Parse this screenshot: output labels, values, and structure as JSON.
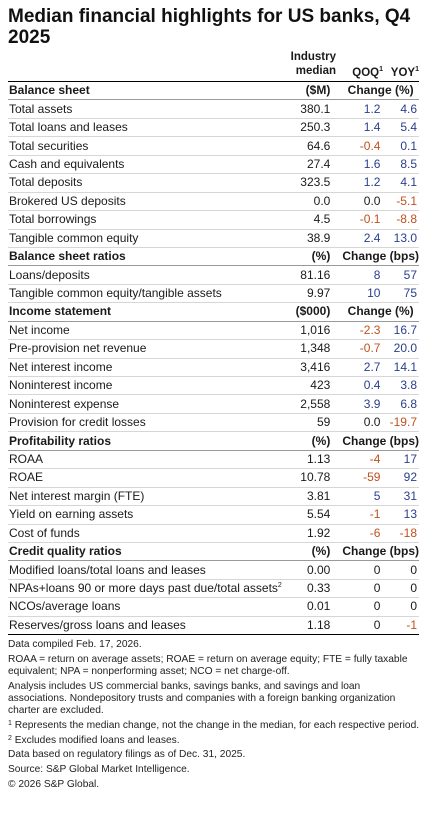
{
  "title": "Median financial highlights for US banks, Q4 2025",
  "columns": {
    "median_line1": "Industry",
    "median_line2": "median",
    "qoq": "QOQ",
    "yoy": "YOY",
    "footnote_mark": "1"
  },
  "sections": [
    {
      "name": "Balance sheet",
      "unit": "($M)",
      "change_unit": "Change (%)",
      "rows": [
        {
          "label": "Total assets",
          "median": "380.1",
          "qoq": "1.2",
          "yoy": "4.6"
        },
        {
          "label": "Total loans and leases",
          "median": "250.3",
          "qoq": "1.4",
          "yoy": "5.4"
        },
        {
          "label": "Total securities",
          "median": "64.6",
          "qoq": "-0.4",
          "yoy": "0.1"
        },
        {
          "label": "Cash and equivalents",
          "median": "27.4",
          "qoq": "1.6",
          "yoy": "8.5"
        },
        {
          "label": "Total deposits",
          "median": "323.5",
          "qoq": "1.2",
          "yoy": "4.1"
        },
        {
          "label": "Brokered US deposits",
          "median": "0.0",
          "qoq": "0.0",
          "yoy": "-5.1"
        },
        {
          "label": "Total borrowings",
          "median": "4.5",
          "qoq": "-0.1",
          "yoy": "-8.8"
        },
        {
          "label": "Tangible common equity",
          "median": "38.9",
          "qoq": "2.4",
          "yoy": "13.0"
        }
      ]
    },
    {
      "name": "Balance sheet ratios",
      "unit": "(%)",
      "change_unit": "Change (bps)",
      "rows": [
        {
          "label": "Loans/deposits",
          "median": "81.16",
          "qoq": "8",
          "yoy": "57"
        },
        {
          "label": "Tangible common equity/tangible assets",
          "median": "9.97",
          "qoq": "10",
          "yoy": "75"
        }
      ]
    },
    {
      "name": "Income statement",
      "unit": "($000)",
      "change_unit": "Change (%)",
      "rows": [
        {
          "label": "Net income",
          "median": "1,016",
          "qoq": "-2.3",
          "yoy": "16.7"
        },
        {
          "label": "Pre-provision net revenue",
          "median": "1,348",
          "qoq": "-0.7",
          "yoy": "20.0"
        },
        {
          "label": "Net interest income",
          "median": "3,416",
          "qoq": "2.7",
          "yoy": "14.1"
        },
        {
          "label": "Noninterest income",
          "median": "423",
          "qoq": "0.4",
          "yoy": "3.8"
        },
        {
          "label": "Noninterest expense",
          "median": "2,558",
          "qoq": "3.9",
          "yoy": "6.8"
        },
        {
          "label": "Provision for credit losses",
          "median": "59",
          "qoq": "0.0",
          "yoy": "-19.7"
        }
      ]
    },
    {
      "name": "Profitability ratios",
      "unit": "(%)",
      "change_unit": "Change (bps)",
      "rows": [
        {
          "label": "ROAA",
          "median": "1.13",
          "qoq": "-4",
          "yoy": "17"
        },
        {
          "label": "ROAE",
          "median": "10.78",
          "qoq": "-59",
          "yoy": "92"
        },
        {
          "label": "Net interest margin (FTE)",
          "median": "3.81",
          "qoq": "5",
          "yoy": "31"
        },
        {
          "label": "Yield on earning assets",
          "median": "5.54",
          "qoq": "-1",
          "yoy": "13"
        },
        {
          "label": "Cost of funds",
          "median": "1.92",
          "qoq": "-6",
          "yoy": "-18"
        }
      ]
    },
    {
      "name": "Credit quality ratios",
      "unit": "(%)",
      "change_unit": "Change (bps)",
      "rows": [
        {
          "label": "Modified loans/total loans and leases",
          "median": "0.00",
          "qoq": "0",
          "yoy": "0"
        },
        {
          "label": "NPAs+loans 90 or more days past due/total assets",
          "label_sup": "2",
          "median": "0.33",
          "qoq": "0",
          "yoy": "0"
        },
        {
          "label": "NCOs/average loans",
          "median": "0.01",
          "qoq": "0",
          "yoy": "0"
        },
        {
          "label": "Reserves/gross loans and leases",
          "median": "1.18",
          "qoq": "0",
          "yoy": "-1"
        }
      ]
    }
  ],
  "notes": {
    "compiled": "Data compiled Feb. 17, 2026.",
    "definitions": "ROAA = return on average assets; ROAE = return on average equity; FTE = fully taxable equivalent; NPA = nonperforming asset; NCO = net charge-off.",
    "scope": "Analysis includes US commercial banks, savings banks, and savings and loan associations. Nondepository trusts and companies with a foreign banking organization charter are excluded.",
    "fn1_mark": "1",
    "fn1": " Represents the median change, not the change in the median, for each respective period.",
    "fn2_mark": "2",
    "fn2": " Excludes modified loans and leases.",
    "basis": "Data based on regulatory filings as of Dec. 31, 2025.",
    "source": "Source: S&P Global Market Intelligence.",
    "copyright": "© 2026 S&P Global."
  },
  "colors": {
    "positive": "#2a3f8c",
    "negative": "#c0501e"
  }
}
